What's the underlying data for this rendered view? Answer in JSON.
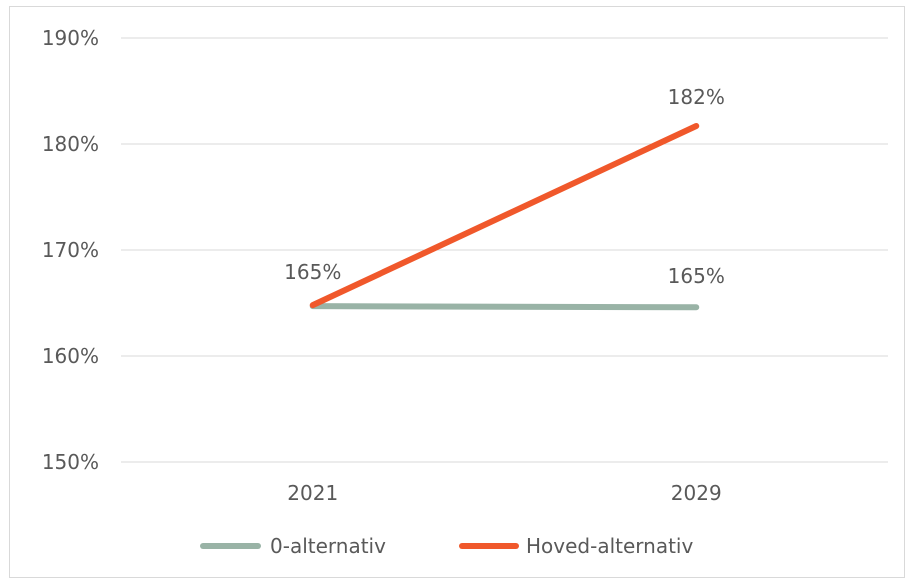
{
  "chart_data": {
    "type": "line",
    "title": "",
    "xlabel": "",
    "ylabel": "",
    "categories": [
      "2021",
      "2029"
    ],
    "ylim": [
      1.5,
      1.9
    ],
    "yticks": [
      1.5,
      1.6,
      1.7,
      1.8,
      1.9
    ],
    "ytick_labels": [
      "150%",
      "160%",
      "170%",
      "180%",
      "190%"
    ],
    "grid": true,
    "legend_position": "bottom",
    "series": [
      {
        "name": "0-alternativ",
        "values": [
          1.647,
          1.646
        ],
        "data_labels": [
          "165%",
          "165%"
        ],
        "color": "#99b3a6"
      },
      {
        "name": "Hoved-alternativ",
        "values": [
          1.648,
          1.817
        ],
        "data_labels": [
          "165%",
          "182%"
        ],
        "color": "#f0582b"
      }
    ]
  }
}
